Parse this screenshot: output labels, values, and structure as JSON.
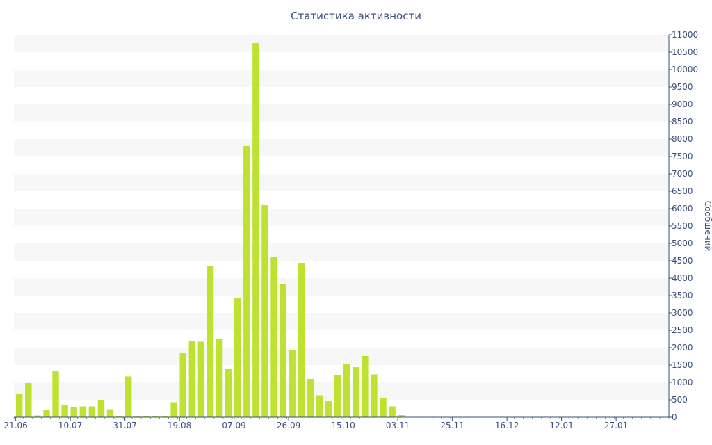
{
  "chart_data": {
    "type": "bar",
    "title": "Статистика активности",
    "xlabel": "",
    "ylabel": "Сообщений",
    "ylim": [
      0,
      11000
    ],
    "y_ticks": [
      0,
      500,
      1000,
      1500,
      2000,
      2500,
      3000,
      3500,
      4000,
      4500,
      5000,
      5500,
      6000,
      6500,
      7000,
      7500,
      8000,
      8500,
      9000,
      9500,
      10000,
      10500,
      11000
    ],
    "x_tick_labels": [
      {
        "label": "21.06",
        "index": 0
      },
      {
        "label": "10.07",
        "index": 6
      },
      {
        "label": "31.07",
        "index": 12
      },
      {
        "label": "19.08",
        "index": 18
      },
      {
        "label": "07.09",
        "index": 24
      },
      {
        "label": "26.09",
        "index": 30
      },
      {
        "label": "15.10",
        "index": 36
      },
      {
        "label": "03.11",
        "index": 42
      },
      {
        "label": "25.11",
        "index": 48
      },
      {
        "label": "16.12",
        "index": 54
      },
      {
        "label": "12.01",
        "index": 60
      },
      {
        "label": "27.01",
        "index": 66
      }
    ],
    "values": [
      680,
      980,
      50,
      200,
      1330,
      340,
      300,
      310,
      310,
      500,
      230,
      30,
      1170,
      40,
      40,
      20,
      20,
      430,
      1840,
      2190,
      2170,
      4360,
      2260,
      1400,
      3430,
      7800,
      10760,
      6100,
      4600,
      3840,
      1930,
      4440,
      1100,
      630,
      480,
      1210,
      1520,
      1440,
      1760,
      1230,
      560,
      310,
      60,
      10,
      10,
      10,
      10,
      10,
      10,
      10,
      10,
      10,
      10,
      10,
      10,
      10,
      10,
      10,
      10,
      10,
      10,
      10,
      10,
      10,
      10,
      10,
      10,
      10,
      10,
      10,
      10,
      10
    ],
    "grid": true,
    "y_axis_position": "right",
    "colors": {
      "bar": "#bde22f",
      "band": "#f7f7f7",
      "axis": "#3b4f7a",
      "text": "#3b4f7a"
    }
  }
}
